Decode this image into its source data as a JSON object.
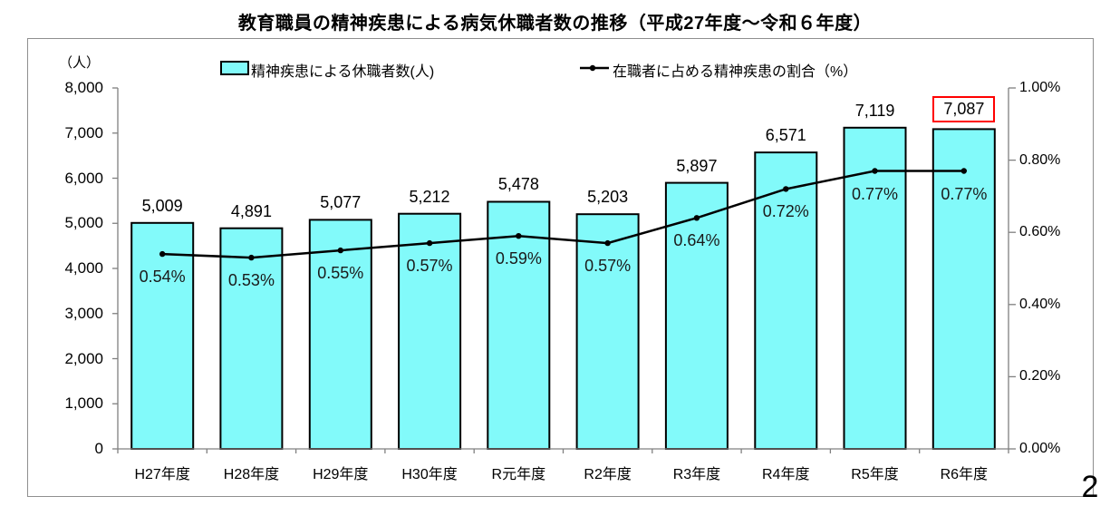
{
  "page": {
    "number": "2"
  },
  "title": "教育職員の精神疾患による病気休職者数の推移（平成27年度～令和６年度）",
  "legend": {
    "bar_label": "精神疾患による休職者数(人)",
    "line_label": "在職者に占める精神疾患の割合（%）"
  },
  "axes": {
    "left_unit": "（人）",
    "left_ticks": [
      "8,000",
      "7,000",
      "6,000",
      "5,000",
      "4,000",
      "3,000",
      "2,000",
      "1,000",
      "0"
    ],
    "right_ticks": [
      "1.00%",
      "0.80%",
      "0.60%",
      "0.40%",
      "0.20%",
      "0.00%"
    ]
  },
  "chart_data": {
    "type": "bar+line combo",
    "title": "教育職員の精神疾患による病気休職者数の推移（平成27年度～令和６年度）",
    "categories": [
      "H27年度",
      "H28年度",
      "H29年度",
      "H30年度",
      "R元年度",
      "R2年度",
      "R3年度",
      "R4年度",
      "R5年度",
      "R6年度"
    ],
    "series": [
      {
        "name": "精神疾患による休職者数(人)",
        "type": "bar",
        "axis": "left",
        "values": [
          5009,
          4891,
          5077,
          5212,
          5478,
          5203,
          5897,
          6571,
          7119,
          7087
        ],
        "labels": [
          "5,009",
          "4,891",
          "5,077",
          "5,212",
          "5,478",
          "5,203",
          "5,897",
          "6,571",
          "7,119",
          "7,087"
        ],
        "fill": "#82fafa",
        "stroke": "#000000"
      },
      {
        "name": "在職者に占める精神疾患の割合（%）",
        "type": "line",
        "axis": "right",
        "values": [
          0.54,
          0.53,
          0.55,
          0.57,
          0.59,
          0.57,
          0.64,
          0.72,
          0.77,
          0.77
        ],
        "labels": [
          "0.54%",
          "0.53%",
          "0.55%",
          "0.57%",
          "0.59%",
          "0.57%",
          "0.64%",
          "0.72%",
          "0.77%",
          "0.77%"
        ],
        "color": "#000000"
      }
    ],
    "left_axis": {
      "unit": "（人）",
      "min": 0,
      "max": 8000,
      "step": 1000
    },
    "right_axis": {
      "min": 0.0,
      "max": 1.0,
      "step": 0.2,
      "format": "0.00%"
    },
    "grid": false,
    "legend_position": "top",
    "highlight": {
      "series": 0,
      "index": 9,
      "box_color": "#ff0000",
      "note": "last bar value label boxed in red"
    }
  },
  "colors": {
    "bar_fill": "#82fafa",
    "bar_border": "#000000",
    "line": "#000000",
    "axis": "#808080",
    "frame_border": "#8f8f8f",
    "highlight_box": "#ff0000"
  }
}
